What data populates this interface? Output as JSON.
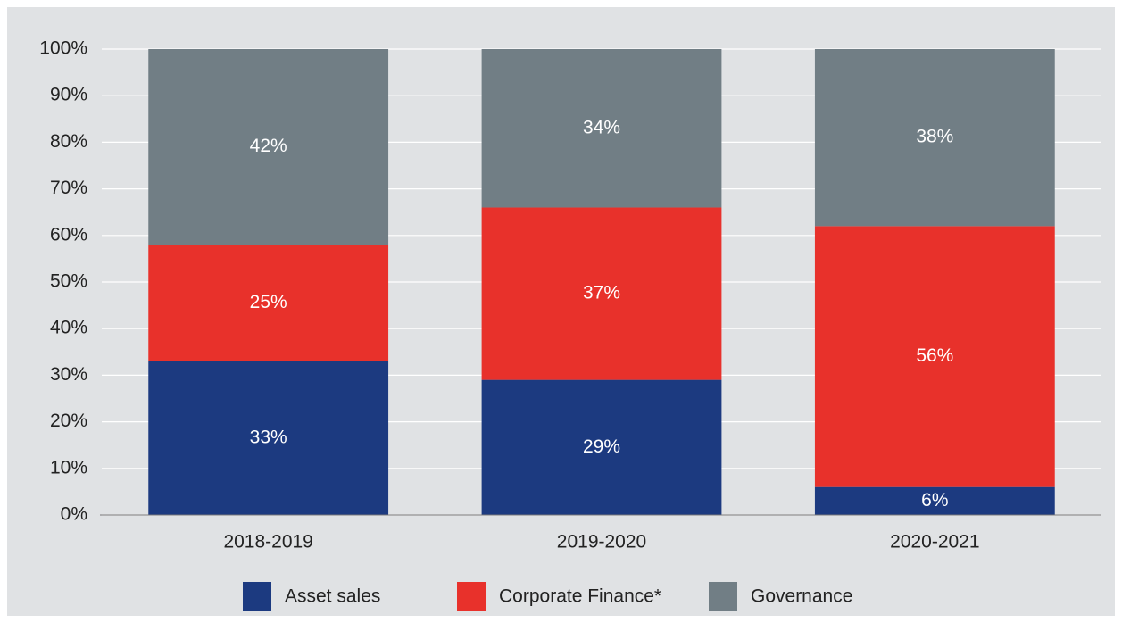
{
  "chart_data": {
    "type": "stacked_bar",
    "categories": [
      "2018-2019",
      "2019-2020",
      "2020-2021"
    ],
    "series": [
      {
        "name": "Asset sales",
        "color": "#1c3a80",
        "values": [
          33,
          29,
          6
        ],
        "value_labels": [
          "33%",
          "29%",
          "6%"
        ]
      },
      {
        "name": "Corporate Finance*",
        "color": "#e8312b",
        "values": [
          25,
          37,
          56
        ],
        "value_labels": [
          "25%",
          "37%",
          "56%"
        ]
      },
      {
        "name": "Governance",
        "color": "#717e85",
        "values": [
          42,
          34,
          38
        ],
        "value_labels": [
          "42%",
          "34%",
          "38%"
        ]
      }
    ],
    "ylim": [
      0,
      100
    ],
    "yticks": [
      {
        "value": 0,
        "label": "0%"
      },
      {
        "value": 10,
        "label": "10%"
      },
      {
        "value": 20,
        "label": "20%"
      },
      {
        "value": 30,
        "label": "30%"
      },
      {
        "value": 40,
        "label": "40%"
      },
      {
        "value": 50,
        "label": "50%"
      },
      {
        "value": 60,
        "label": "60%"
      },
      {
        "value": 70,
        "label": "70%"
      },
      {
        "value": 80,
        "label": "80%"
      },
      {
        "value": 90,
        "label": "90%"
      },
      {
        "value": 100,
        "label": "100%"
      }
    ],
    "grid": true,
    "legend": "bottom"
  }
}
